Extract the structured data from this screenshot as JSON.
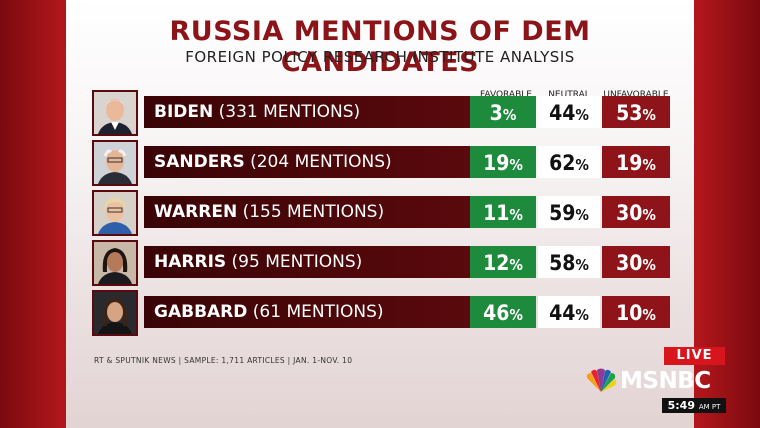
{
  "title": "RUSSIA MENTIONS OF DEM CANDIDATES",
  "subtitle": "FOREIGN POLICY RESEARCH INSTITUTE ANALYSIS",
  "columns": {
    "favorable": "FAVORABLE",
    "neutral": "NEUTRAL",
    "unfavorable": "UNFAVORABLE"
  },
  "rows": [
    {
      "name": "BIDEN",
      "mentions": "(331 MENTIONS)",
      "favorable": "3",
      "neutral": "44",
      "unfavorable": "53",
      "pct": "%"
    },
    {
      "name": "SANDERS",
      "mentions": "(204 MENTIONS)",
      "favorable": "19",
      "neutral": "62",
      "unfavorable": "19",
      "pct": "%"
    },
    {
      "name": "WARREN",
      "mentions": "(155 MENTIONS)",
      "favorable": "11",
      "neutral": "59",
      "unfavorable": "30",
      "pct": "%"
    },
    {
      "name": "HARRIS",
      "mentions": "(95 MENTIONS)",
      "favorable": "12",
      "neutral": "58",
      "unfavorable": "30",
      "pct": "%"
    },
    {
      "name": "GABBARD",
      "mentions": "(61 MENTIONS)",
      "favorable": "46",
      "neutral": "44",
      "unfavorable": "10",
      "pct": "%"
    }
  ],
  "source": "RT & SPUTNIK NEWS | SAMPLE: 1,711 ARTICLES | JAN. 1-NOV. 10",
  "live_label": "LIVE",
  "network": "MSNBC",
  "clock": {
    "time": "5:49",
    "suffix": "AM PT"
  },
  "colors": {
    "favorable": "#1d8a3c",
    "neutral": "#ffffff",
    "unfavorable": "#8e1419",
    "title": "#8b1418"
  }
}
